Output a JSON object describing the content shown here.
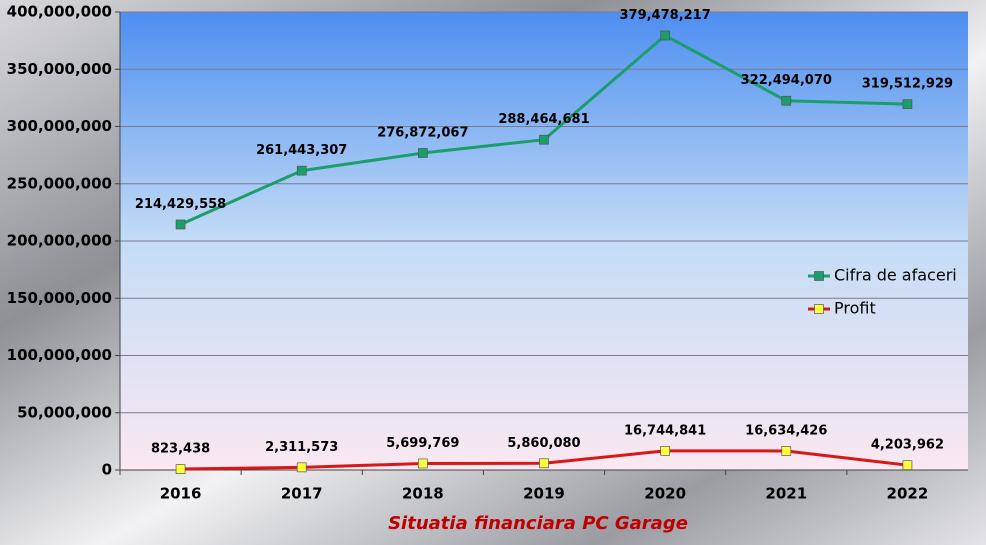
{
  "chart_data": {
    "type": "line",
    "title": "Situatia financiara PC Garage",
    "categories": [
      "2016",
      "2017",
      "2018",
      "2019",
      "2020",
      "2021",
      "2022"
    ],
    "series": [
      {
        "name": "Cifra de afaceri",
        "color": "#1a9e6a",
        "marker_color": "#1a9e6a",
        "values": [
          214429558,
          261443307,
          276872067,
          288464681,
          379478217,
          322494070,
          319512929
        ],
        "value_labels": [
          "214,429,558",
          "261,443,307",
          "276,872,067",
          "288,464,681",
          "379,478,217",
          "322,494,070",
          "319,512,929"
        ]
      },
      {
        "name": "Profit",
        "color": "#d81818",
        "marker_color": "#ffff40",
        "values": [
          823438,
          2311573,
          5699769,
          5860080,
          16744841,
          16634426,
          4203962
        ],
        "value_labels": [
          "823,438",
          "2,311,573",
          "5,699,769",
          "5,860,080",
          "16,744,841",
          "16,634,426",
          "4,203,962"
        ]
      }
    ],
    "ylim": [
      0,
      400000000
    ],
    "yticks": [
      0,
      {
        "value": 50000000,
        "label": "50,000,000"
      },
      {
        "value": 100000000,
        "label": "100,000,000"
      },
      {
        "value": 150000000,
        "label": "150,000,000"
      },
      {
        "value": 200000000,
        "label": "200,000,000"
      },
      {
        "value": 250000000,
        "label": "250,000,000"
      },
      {
        "value": 300000000,
        "label": "300,000,000"
      },
      {
        "value": 350000000,
        "label": "350,000,000"
      },
      {
        "value": 400000000,
        "label": "400,000,000"
      }
    ],
    "grid": true,
    "legend_position": "right"
  }
}
